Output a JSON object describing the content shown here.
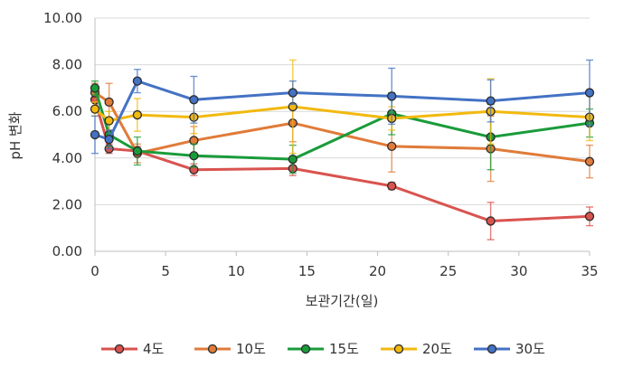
{
  "chart_data": {
    "type": "line",
    "title": "",
    "xlabel": "보관기간(일)",
    "ylabel": "pH 변화",
    "xlim": [
      0,
      35
    ],
    "ylim": [
      0,
      10
    ],
    "x_ticks": [
      "0",
      "5",
      "10",
      "15",
      "20",
      "25",
      "30",
      "35"
    ],
    "y_ticks": [
      "0.00",
      "2.00",
      "4.00",
      "6.00",
      "8.00",
      "10.00"
    ],
    "x": [
      0,
      1,
      3,
      7,
      14,
      21,
      28,
      35
    ],
    "grid": "horizontal",
    "legend_position": "bottom",
    "series": [
      {
        "name": "4도",
        "color": "#d9534f",
        "values": [
          6.5,
          4.4,
          4.3,
          3.5,
          3.55,
          2.8,
          1.3,
          1.5
        ],
        "errors": [
          0.5,
          0.2,
          0.2,
          0.25,
          0.3,
          0.15,
          0.8,
          0.4
        ]
      },
      {
        "name": "10도",
        "color": "#e07b39",
        "values": [
          6.8,
          6.4,
          4.2,
          4.75,
          5.5,
          4.5,
          4.4,
          3.85
        ],
        "errors": [
          0.4,
          0.8,
          0.4,
          0.6,
          0.8,
          1.1,
          1.4,
          0.7
        ]
      },
      {
        "name": "15도",
        "color": "#1a9b3a",
        "values": [
          7.0,
          5.0,
          4.3,
          4.1,
          3.95,
          5.9,
          4.9,
          5.5
        ],
        "errors": [
          0.3,
          0.5,
          0.6,
          0.5,
          0.6,
          0.9,
          1.4,
          0.6
        ]
      },
      {
        "name": "20도",
        "color": "#f2b90f",
        "values": [
          6.1,
          5.6,
          5.85,
          5.75,
          6.2,
          5.7,
          6.0,
          5.75
        ],
        "errors": [
          0.3,
          0.4,
          0.7,
          0.7,
          2.0,
          0.5,
          1.4,
          1.0
        ]
      },
      {
        "name": "30도",
        "color": "#4472c4",
        "values": [
          5.0,
          4.8,
          7.3,
          6.5,
          6.8,
          6.65,
          6.45,
          6.8
        ],
        "errors": [
          0.8,
          0.4,
          0.5,
          1.0,
          0.5,
          1.2,
          0.9,
          1.4
        ]
      }
    ]
  }
}
